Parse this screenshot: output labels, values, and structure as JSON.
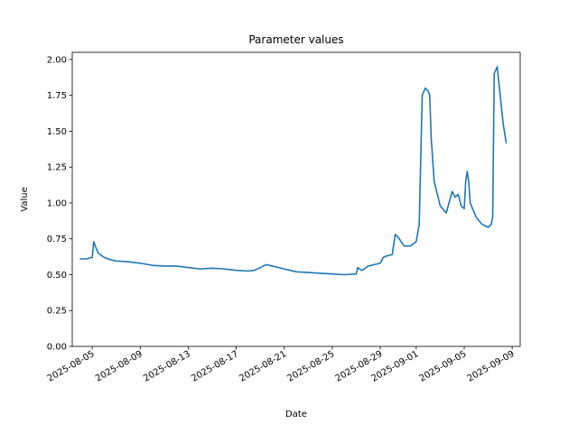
{
  "chart_data": {
    "type": "line",
    "title": "Parameter values",
    "xlabel": "Date",
    "ylabel": "Value",
    "ylim": [
      0.0,
      2.05
    ],
    "xlim": [
      "2025-08-03T08:00",
      "2025-09-09T16:00"
    ],
    "y_ticks": [
      0.0,
      0.25,
      0.5,
      0.75,
      1.0,
      1.25,
      1.5,
      1.75,
      2.0
    ],
    "y_tick_labels": [
      "0.00",
      "0.25",
      "0.50",
      "0.75",
      "1.00",
      "1.25",
      "1.50",
      "1.75",
      "2.00"
    ],
    "x_ticks": [
      "2025-08-05",
      "2025-08-09",
      "2025-08-13",
      "2025-08-17",
      "2025-08-21",
      "2025-08-25",
      "2025-08-29",
      "2025-09-01",
      "2025-09-05",
      "2025-09-09"
    ],
    "x_tick_labels": [
      "2025-08-05",
      "2025-08-09",
      "2025-08-13",
      "2025-08-17",
      "2025-08-21",
      "2025-08-25",
      "2025-08-29",
      "2025-09-01",
      "2025-09-05",
      "2025-09-09"
    ],
    "grid": false,
    "series": [
      {
        "color": "#1f77b4",
        "x": [
          "2025-08-04T00:00",
          "2025-08-04T12:00",
          "2025-08-05T00:00",
          "2025-08-05T03:00",
          "2025-08-05T06:00",
          "2025-08-05T12:00",
          "2025-08-06T00:00",
          "2025-08-06T12:00",
          "2025-08-07T00:00",
          "2025-08-08T00:00",
          "2025-08-09T00:00",
          "2025-08-10T00:00",
          "2025-08-11T00:00",
          "2025-08-12T00:00",
          "2025-08-13T00:00",
          "2025-08-14T00:00",
          "2025-08-15T00:00",
          "2025-08-16T00:00",
          "2025-08-17T00:00",
          "2025-08-18T00:00",
          "2025-08-18T12:00",
          "2025-08-19T00:00",
          "2025-08-19T12:00",
          "2025-08-20T00:00",
          "2025-08-21T00:00",
          "2025-08-22T00:00",
          "2025-08-23T00:00",
          "2025-08-24T00:00",
          "2025-08-25T00:00",
          "2025-08-26T00:00",
          "2025-08-27T00:00",
          "2025-08-27T03:00",
          "2025-08-27T06:00",
          "2025-08-27T12:00",
          "2025-08-28T00:00",
          "2025-08-28T12:00",
          "2025-08-29T00:00",
          "2025-08-29T06:00",
          "2025-08-29T12:00",
          "2025-08-30T00:00",
          "2025-08-30T06:00",
          "2025-08-30T12:00",
          "2025-08-31T00:00",
          "2025-08-31T12:00",
          "2025-09-01T00:00",
          "2025-09-01T06:00",
          "2025-09-01T12:00",
          "2025-09-01T18:00",
          "2025-09-02T00:00",
          "2025-09-02T03:00",
          "2025-09-02T06:00",
          "2025-09-02T12:00",
          "2025-09-03T00:00",
          "2025-09-03T12:00",
          "2025-09-04T00:00",
          "2025-09-04T06:00",
          "2025-09-04T12:00",
          "2025-09-04T18:00",
          "2025-09-05T00:00",
          "2025-09-05T03:00",
          "2025-09-05T06:00",
          "2025-09-05T09:00",
          "2025-09-05T12:00",
          "2025-09-06T00:00",
          "2025-09-06T12:00",
          "2025-09-07T00:00",
          "2025-09-07T06:00",
          "2025-09-07T09:00",
          "2025-09-07T12:00",
          "2025-09-07T18:00",
          "2025-09-08T00:00",
          "2025-09-08T06:00",
          "2025-09-08T12:00"
        ],
        "values": [
          0.61,
          0.61,
          0.62,
          0.73,
          0.7,
          0.65,
          0.62,
          0.605,
          0.595,
          0.59,
          0.58,
          0.565,
          0.56,
          0.56,
          0.55,
          0.54,
          0.545,
          0.54,
          0.53,
          0.525,
          0.53,
          0.55,
          0.57,
          0.56,
          0.54,
          0.52,
          0.515,
          0.51,
          0.505,
          0.5,
          0.505,
          0.55,
          0.54,
          0.53,
          0.56,
          0.57,
          0.58,
          0.62,
          0.63,
          0.64,
          0.78,
          0.76,
          0.7,
          0.7,
          0.73,
          0.85,
          1.75,
          1.8,
          1.78,
          1.75,
          1.45,
          1.15,
          0.98,
          0.93,
          1.08,
          1.04,
          1.06,
          0.98,
          0.96,
          1.15,
          1.22,
          1.15,
          1.0,
          0.9,
          0.85,
          0.83,
          0.85,
          0.9,
          1.9,
          1.95,
          1.75,
          1.55,
          1.42
        ]
      }
    ]
  }
}
